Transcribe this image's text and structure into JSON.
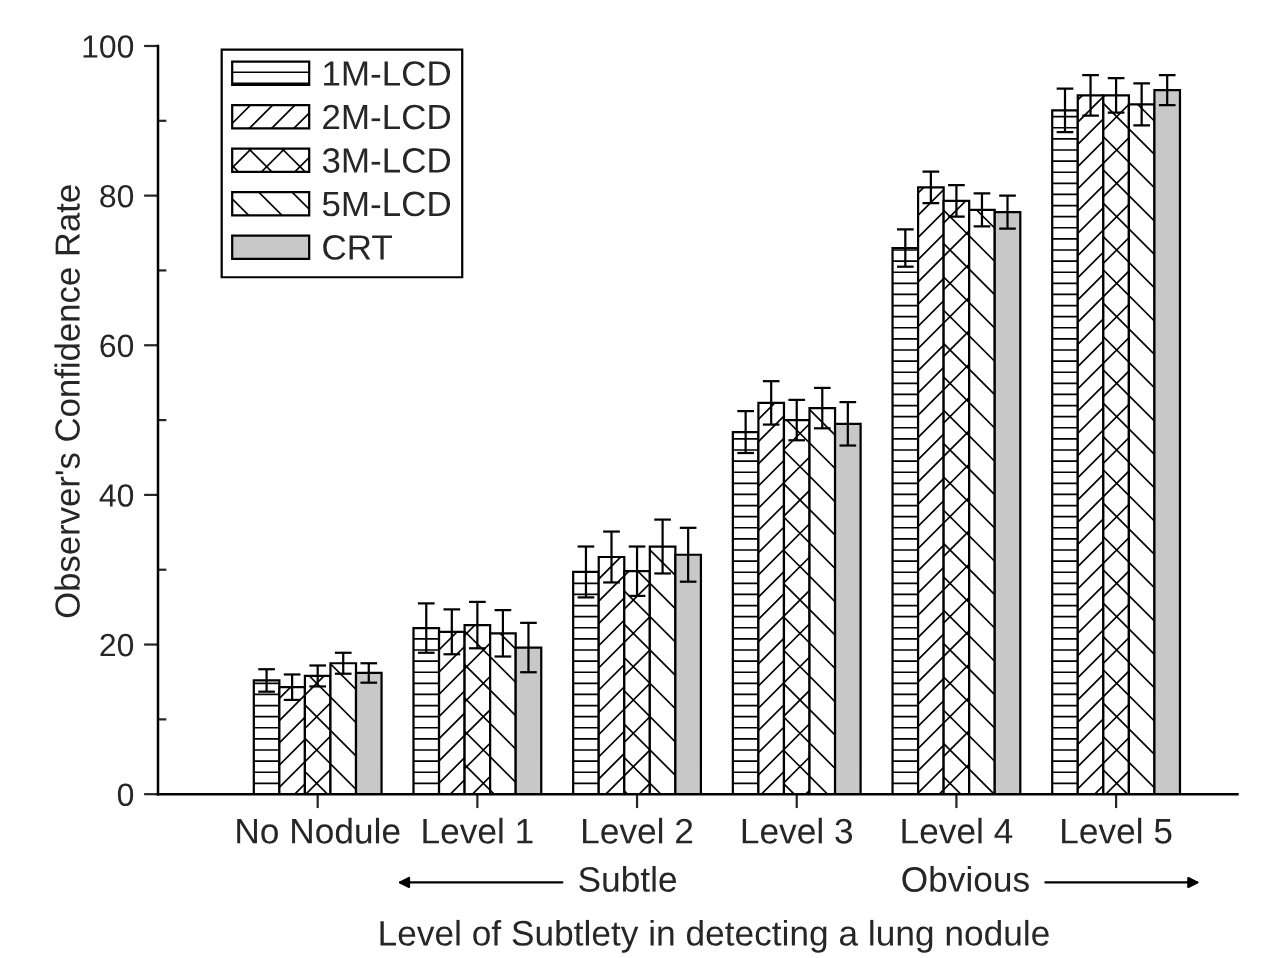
{
  "chart_data": {
    "type": "bar",
    "xlabel": "Level of Subtlety in detecting a lung nodule",
    "ylabel": "Observer's Confidence Rate",
    "categories": [
      "No Nodule",
      "Level 1",
      "Level 2",
      "Level 3",
      "Level 4",
      "Level 5"
    ],
    "series": [
      {
        "name": "1M-LCD",
        "color": "#000000",
        "values": [
          15.2,
          22.2,
          29.7,
          48.4,
          73,
          91.4
        ],
        "errors": [
          1.5,
          3.3,
          3.4,
          2.8,
          2.5,
          2.9
        ]
      },
      {
        "name": "2M-LCD",
        "color": "#000000",
        "values": [
          14.3,
          21.7,
          31.7,
          52.3,
          81.1,
          93.4
        ],
        "errors": [
          1.7,
          3,
          3.4,
          2.9,
          2.1,
          2.7
        ]
      },
      {
        "name": "3M-LCD",
        "color": "#000000",
        "values": [
          15.8,
          22.6,
          29.8,
          50,
          79.3,
          93.4
        ],
        "errors": [
          1.4,
          3.1,
          3.3,
          2.7,
          2.1,
          2.3
        ]
      },
      {
        "name": "5M-LCD",
        "color": "#000000",
        "values": [
          17.5,
          21.5,
          33.1,
          51.6,
          78.1,
          92.2
        ],
        "errors": [
          1.4,
          3.1,
          3.6,
          2.7,
          2.2,
          2.8
        ]
      },
      {
        "name": "CRT",
        "color": "#c8c8c8",
        "values": [
          16.2,
          19.6,
          32,
          49.5,
          77.8,
          94.1
        ],
        "errors": [
          1.3,
          3.3,
          3.6,
          2.9,
          2.2,
          2
        ]
      }
    ],
    "ylim": [
      0,
      100
    ],
    "yticks": [
      0,
      {
        "value": 10,
        "label": null
      },
      20,
      {
        "value": 30,
        "label": null
      },
      40,
      {
        "value": 50,
        "label": null
      },
      60,
      {
        "value": 70,
        "label": null
      },
      80,
      {
        "value": 90,
        "label": null
      },
      100
    ],
    "legend": "top left",
    "annotations": [
      "Subtle",
      "Obvious"
    ]
  }
}
